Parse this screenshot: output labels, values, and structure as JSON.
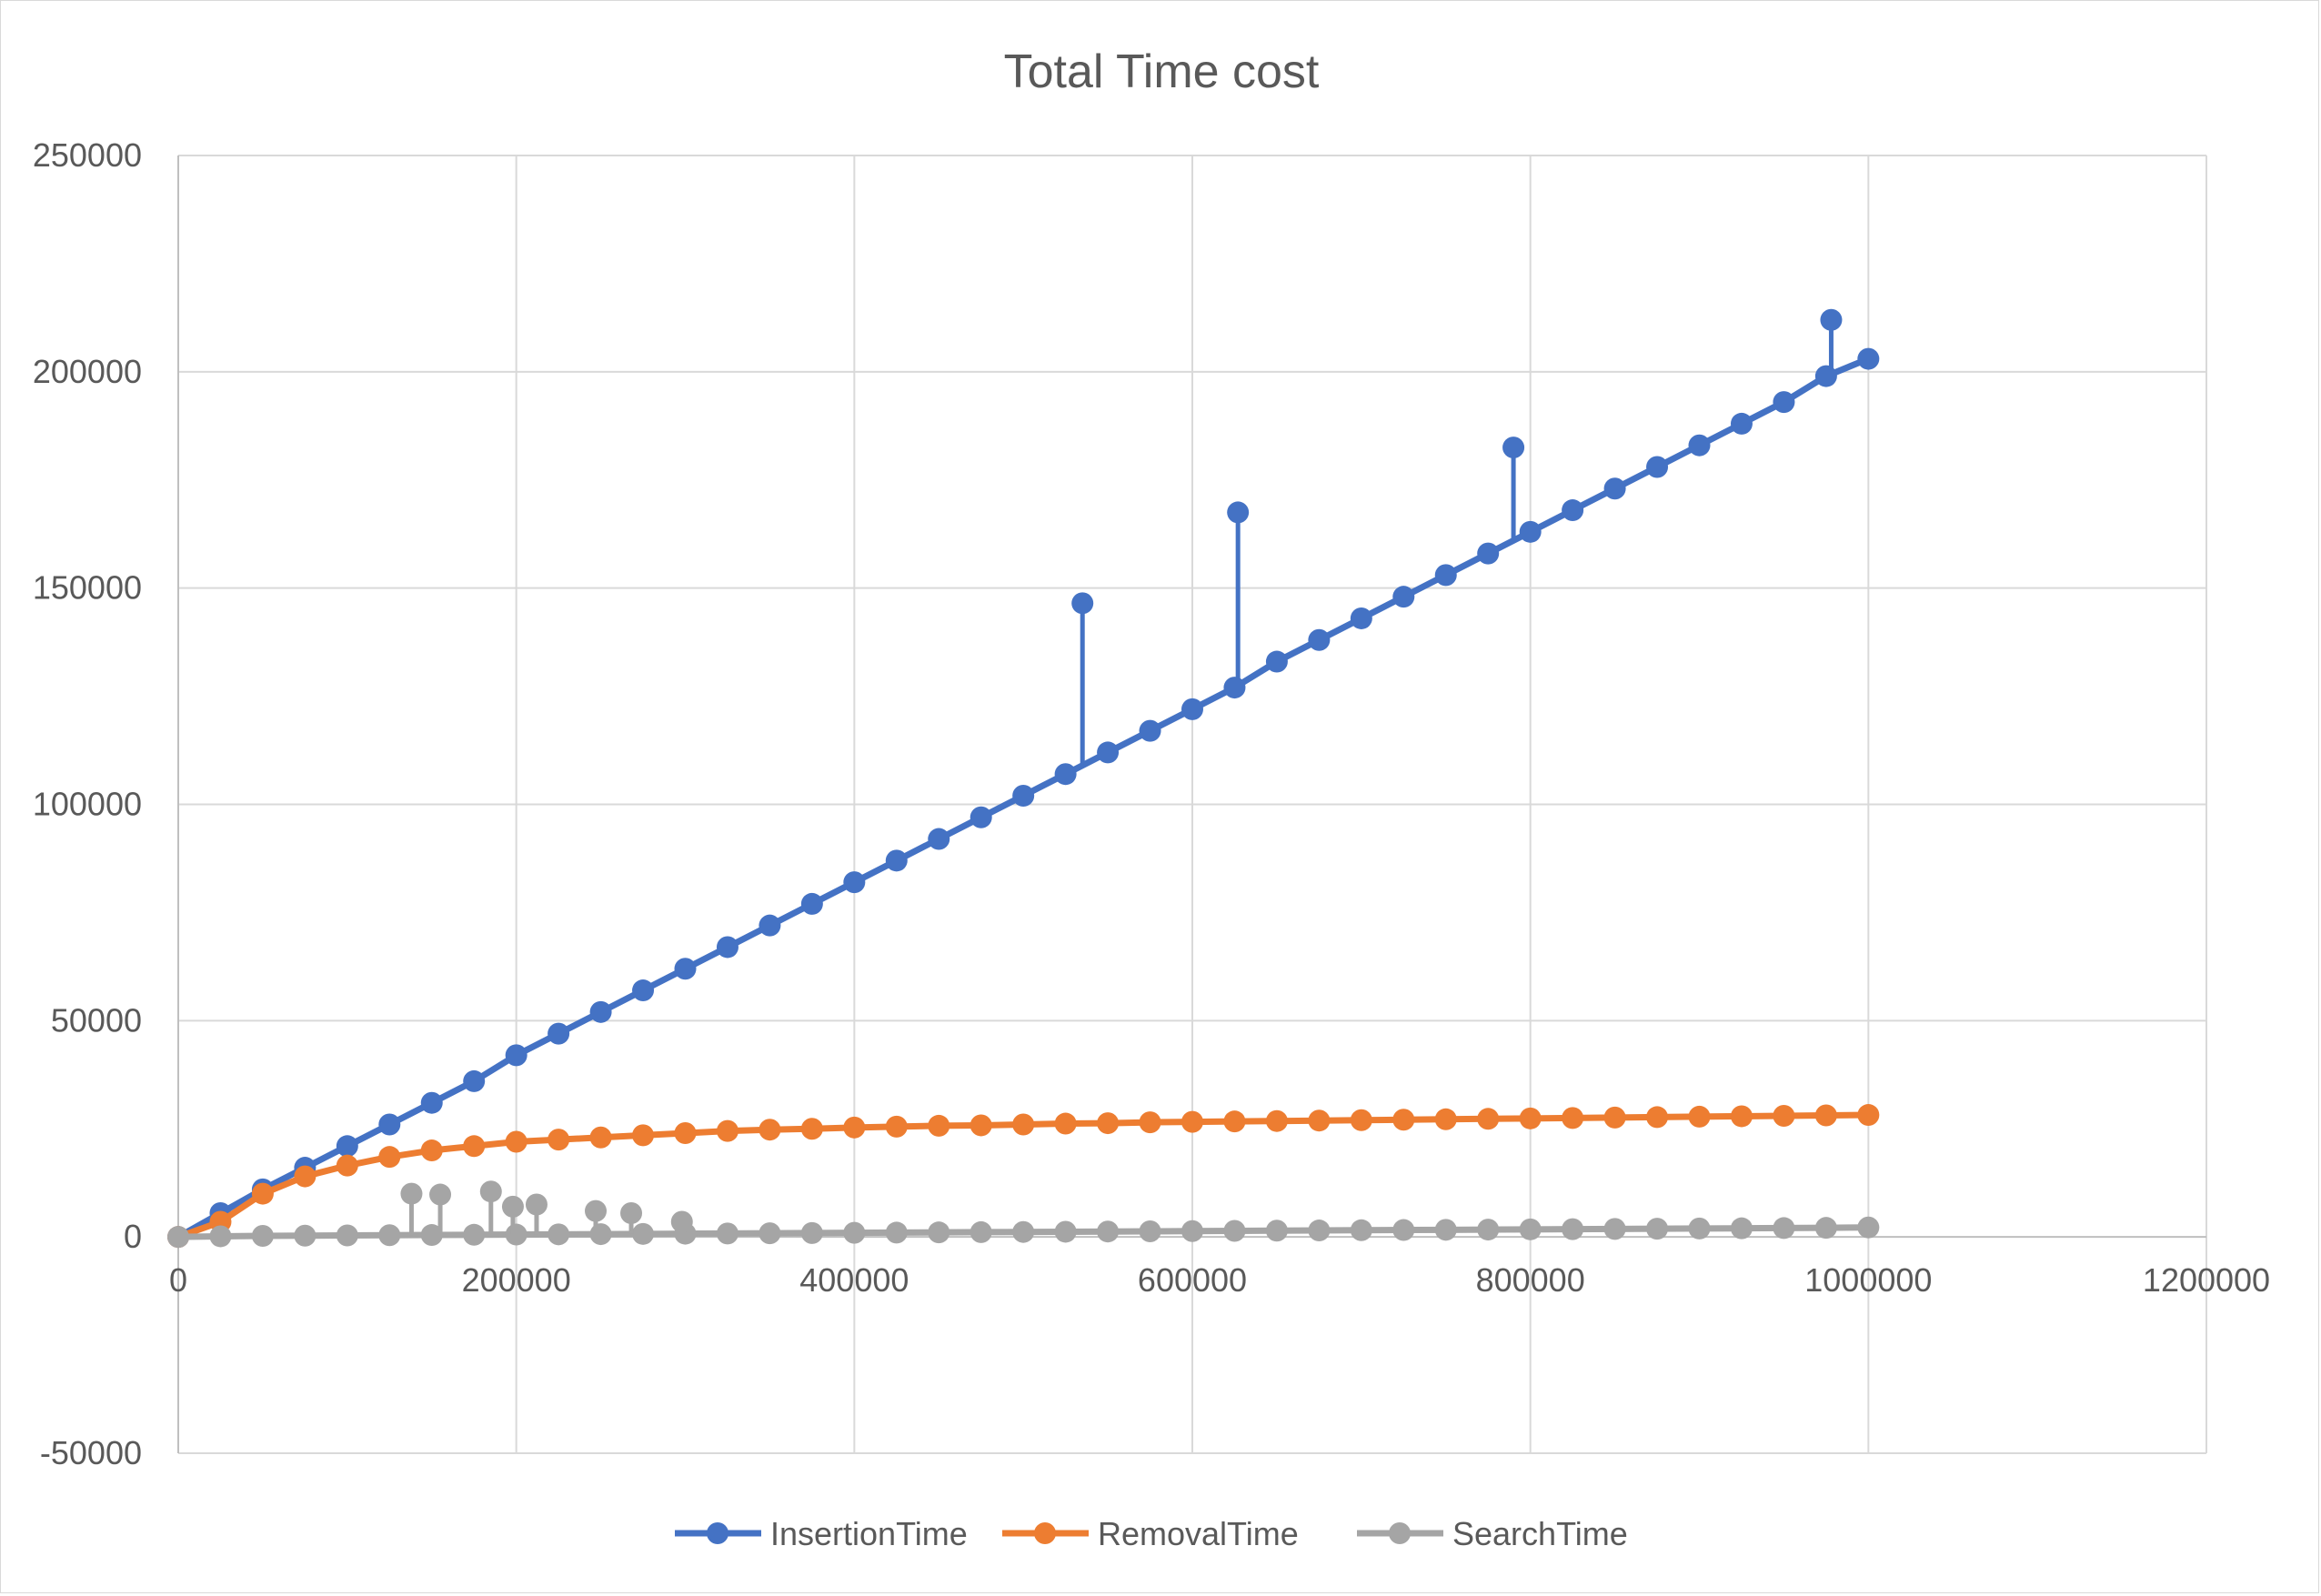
{
  "chart_data": {
    "type": "scatter",
    "title": "Total Time cost",
    "xlabel": "",
    "ylabel": "",
    "xlim": [
      0,
      1200000
    ],
    "ylim": [
      -50000,
      250000
    ],
    "x_ticks": [
      0,
      200000,
      400000,
      600000,
      800000,
      1000000,
      1200000
    ],
    "y_ticks": [
      -50000,
      0,
      50000,
      100000,
      150000,
      200000,
      250000
    ],
    "x_tick_labels": [
      "0",
      "200000",
      "400000",
      "600000",
      "800000",
      "1000000",
      "1200000"
    ],
    "y_tick_labels": [
      "-50000",
      "0",
      "50000",
      "100000",
      "150000",
      "200000",
      "250000"
    ],
    "grid": true,
    "legend_position": "bottom",
    "markers": true,
    "connected": true,
    "x": [
      0,
      25000,
      50000,
      75000,
      100000,
      125000,
      150000,
      175000,
      200000,
      225000,
      250000,
      275000,
      300000,
      325000,
      350000,
      375000,
      400000,
      425000,
      450000,
      475000,
      500000,
      525000,
      550000,
      575000,
      600000,
      625000,
      650000,
      675000,
      700000,
      725000,
      750000,
      775000,
      800000,
      825000,
      850000,
      875000,
      900000,
      925000,
      950000,
      975000,
      1000000
    ],
    "series": [
      {
        "name": "InsertionTime",
        "color": "#4472C4",
        "values": [
          0,
          5500,
          11000,
          16000,
          21000,
          26000,
          31000,
          36000,
          42000,
          47000,
          52000,
          57000,
          62000,
          67000,
          72000,
          77000,
          82000,
          87000,
          92000,
          97000,
          102000,
          107000,
          112000,
          117000,
          122000,
          127000,
          133000,
          138000,
          143000,
          148000,
          153000,
          158000,
          163000,
          168000,
          173000,
          178000,
          183000,
          188000,
          193000,
          199000,
          203000
        ]
      },
      {
        "name": "RemovalTime",
        "color": "#ED7D31",
        "values": [
          0,
          3500,
          10000,
          14000,
          16500,
          18500,
          20000,
          21000,
          22000,
          22500,
          23000,
          23500,
          24000,
          24500,
          24800,
          25000,
          25300,
          25500,
          25700,
          25800,
          26000,
          26200,
          26300,
          26500,
          26600,
          26700,
          26800,
          26900,
          27000,
          27100,
          27200,
          27300,
          27400,
          27500,
          27600,
          27700,
          27800,
          27900,
          28000,
          28100,
          28200
        ]
      },
      {
        "name": "SearchTime",
        "color": "#A5A5A5",
        "values": [
          0,
          150,
          250,
          300,
          350,
          400,
          450,
          500,
          550,
          600,
          650,
          700,
          750,
          800,
          850,
          900,
          950,
          1000,
          1050,
          1100,
          1150,
          1200,
          1250,
          1300,
          1350,
          1400,
          1450,
          1500,
          1550,
          1600,
          1650,
          1700,
          1750,
          1800,
          1850,
          1900,
          1950,
          2000,
          2050,
          2100,
          2200
        ]
      }
    ],
    "annotations": [
      {
        "series": "InsertionTime",
        "x": 535000,
        "y": 146500
      },
      {
        "series": "InsertionTime",
        "x": 627000,
        "y": 167500
      },
      {
        "series": "InsertionTime",
        "x": 790000,
        "y": 182500
      },
      {
        "series": "InsertionTime",
        "x": 978000,
        "y": 212000
      },
      {
        "series": "SearchTime",
        "x": 138000,
        "y": 10000
      },
      {
        "series": "SearchTime",
        "x": 155000,
        "y": 9800
      },
      {
        "series": "SearchTime",
        "x": 185000,
        "y": 10500
      },
      {
        "series": "SearchTime",
        "x": 198000,
        "y": 7000
      },
      {
        "series": "SearchTime",
        "x": 212000,
        "y": 7500
      },
      {
        "series": "SearchTime",
        "x": 247000,
        "y": 6000
      },
      {
        "series": "SearchTime",
        "x": 268000,
        "y": 5500
      },
      {
        "series": "SearchTime",
        "x": 298000,
        "y": 3500
      }
    ]
  }
}
